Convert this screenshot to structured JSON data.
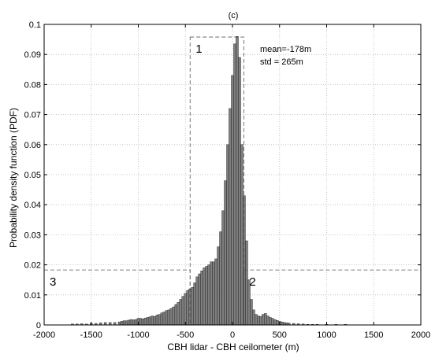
{
  "chart_data": {
    "type": "bar",
    "title": "(c)",
    "xlabel": "CBH lidar - CBH ceilometer (m)",
    "ylabel": "Probability density function (PDF)",
    "xlim": [
      -2000,
      2000
    ],
    "ylim": [
      0,
      0.1
    ],
    "xticks": [
      -2000,
      -1500,
      -1000,
      -500,
      0,
      500,
      1000,
      1500,
      2000
    ],
    "yticks": [
      0,
      0.01,
      0.02,
      0.03,
      0.04,
      0.05,
      0.06,
      0.07,
      0.08,
      0.09,
      0.1
    ],
    "xtick_labels": [
      "-2000",
      "-1500",
      "-1000",
      "-500",
      "0",
      "500",
      "1000",
      "1500",
      "2000"
    ],
    "ytick_labels": [
      "0",
      "0.01",
      "0.02",
      "0.03",
      "0.04",
      "0.05",
      "0.06",
      "0.07",
      "0.08",
      "0.09",
      "0.1"
    ],
    "grid": true,
    "bar_color": "#7f7f7f",
    "bar_width": 25,
    "bins": [
      {
        "x": -1700,
        "y": 0.0003
      },
      {
        "x": -1650,
        "y": 0.0003
      },
      {
        "x": -1600,
        "y": 0.0004
      },
      {
        "x": -1550,
        "y": 0.0003
      },
      {
        "x": -1500,
        "y": 0.0005
      },
      {
        "x": -1450,
        "y": 0.0005
      },
      {
        "x": -1400,
        "y": 0.0007
      },
      {
        "x": -1350,
        "y": 0.0008
      },
      {
        "x": -1300,
        "y": 0.0008
      },
      {
        "x": -1250,
        "y": 0.0008
      },
      {
        "x": -1200,
        "y": 0.001
      },
      {
        "x": -1175,
        "y": 0.0012
      },
      {
        "x": -1150,
        "y": 0.0014
      },
      {
        "x": -1125,
        "y": 0.0014
      },
      {
        "x": -1100,
        "y": 0.0016
      },
      {
        "x": -1075,
        "y": 0.0018
      },
      {
        "x": -1050,
        "y": 0.0017
      },
      {
        "x": -1025,
        "y": 0.0018
      },
      {
        "x": -1000,
        "y": 0.0022
      },
      {
        "x": -975,
        "y": 0.0022
      },
      {
        "x": -950,
        "y": 0.002
      },
      {
        "x": -925,
        "y": 0.0023
      },
      {
        "x": -900,
        "y": 0.0025
      },
      {
        "x": -875,
        "y": 0.0027
      },
      {
        "x": -850,
        "y": 0.003
      },
      {
        "x": -825,
        "y": 0.0028
      },
      {
        "x": -800,
        "y": 0.0033
      },
      {
        "x": -775,
        "y": 0.0035
      },
      {
        "x": -750,
        "y": 0.004
      },
      {
        "x": -725,
        "y": 0.0043
      },
      {
        "x": -700,
        "y": 0.0048
      },
      {
        "x": -675,
        "y": 0.005
      },
      {
        "x": -650,
        "y": 0.0055
      },
      {
        "x": -625,
        "y": 0.006
      },
      {
        "x": -600,
        "y": 0.0068
      },
      {
        "x": -575,
        "y": 0.0075
      },
      {
        "x": -550,
        "y": 0.0085
      },
      {
        "x": -525,
        "y": 0.0095
      },
      {
        "x": -500,
        "y": 0.0105
      },
      {
        "x": -475,
        "y": 0.0115
      },
      {
        "x": -450,
        "y": 0.012
      },
      {
        "x": -425,
        "y": 0.0125
      },
      {
        "x": -400,
        "y": 0.014
      },
      {
        "x": -375,
        "y": 0.016
      },
      {
        "x": -350,
        "y": 0.017
      },
      {
        "x": -325,
        "y": 0.018
      },
      {
        "x": -300,
        "y": 0.019
      },
      {
        "x": -275,
        "y": 0.0195
      },
      {
        "x": -250,
        "y": 0.02
      },
      {
        "x": -225,
        "y": 0.021
      },
      {
        "x": -200,
        "y": 0.021
      },
      {
        "x": -175,
        "y": 0.022
      },
      {
        "x": -150,
        "y": 0.026
      },
      {
        "x": -125,
        "y": 0.031
      },
      {
        "x": -100,
        "y": 0.038
      },
      {
        "x": -75,
        "y": 0.048
      },
      {
        "x": -50,
        "y": 0.06
      },
      {
        "x": -25,
        "y": 0.072
      },
      {
        "x": 0,
        "y": 0.083
      },
      {
        "x": 25,
        "y": 0.0935
      },
      {
        "x": 50,
        "y": 0.096
      },
      {
        "x": 75,
        "y": 0.089
      },
      {
        "x": 100,
        "y": 0.06
      },
      {
        "x": 125,
        "y": 0.043
      },
      {
        "x": 150,
        "y": 0.028
      },
      {
        "x": 175,
        "y": 0.015
      },
      {
        "x": 200,
        "y": 0.0085
      },
      {
        "x": 225,
        "y": 0.005
      },
      {
        "x": 250,
        "y": 0.0035
      },
      {
        "x": 275,
        "y": 0.003
      },
      {
        "x": 300,
        "y": 0.0028
      },
      {
        "x": 325,
        "y": 0.0035
      },
      {
        "x": 350,
        "y": 0.0038
      },
      {
        "x": 375,
        "y": 0.003
      },
      {
        "x": 400,
        "y": 0.0025
      },
      {
        "x": 425,
        "y": 0.0022
      },
      {
        "x": 450,
        "y": 0.0018
      },
      {
        "x": 475,
        "y": 0.0015
      },
      {
        "x": 500,
        "y": 0.0012
      },
      {
        "x": 525,
        "y": 0.001
      },
      {
        "x": 550,
        "y": 0.0008
      },
      {
        "x": 575,
        "y": 0.0007
      },
      {
        "x": 600,
        "y": 0.0006
      },
      {
        "x": 650,
        "y": 0.0005
      },
      {
        "x": 700,
        "y": 0.0004
      },
      {
        "x": 750,
        "y": 0.0003
      },
      {
        "x": 800,
        "y": 0.0002
      },
      {
        "x": 850,
        "y": 0.0002
      },
      {
        "x": 900,
        "y": 0.0002
      },
      {
        "x": 1000,
        "y": 0.0002
      },
      {
        "x": 1100,
        "y": 0.0002
      },
      {
        "x": 1200,
        "y": 0.0002
      }
    ],
    "regions": [
      {
        "label": "1",
        "x": [
          -450,
          120
        ],
        "y": [
          0,
          0.0958
        ]
      },
      {
        "label": "2",
        "x": [
          120,
          2000
        ],
        "y": [
          0,
          0.0183
        ]
      },
      {
        "label": "3",
        "x": [
          -2000,
          -450
        ],
        "y": [
          0,
          0.0183
        ]
      }
    ],
    "annotations": [
      "mean=-178m",
      "std = 265m"
    ]
  }
}
